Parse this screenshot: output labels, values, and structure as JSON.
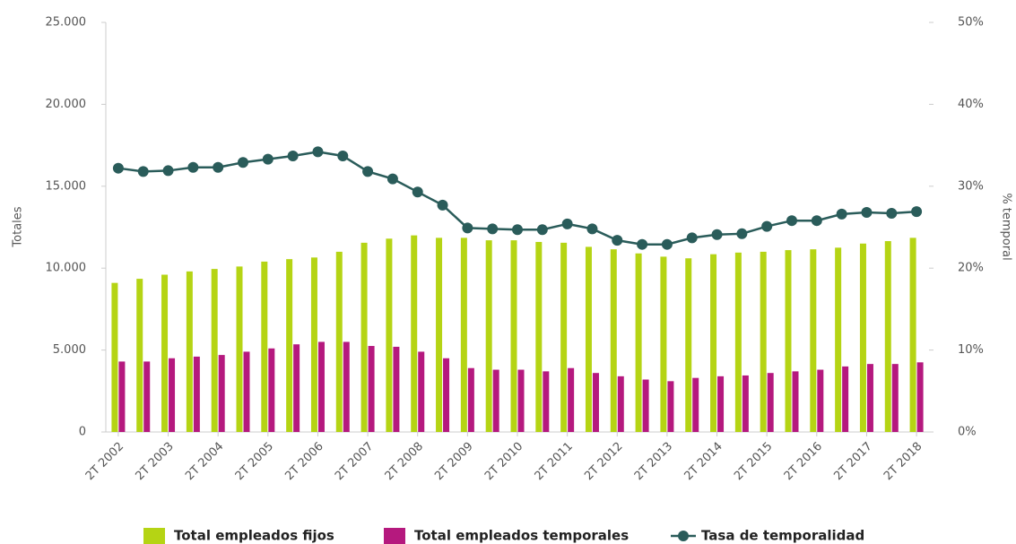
{
  "chart_data": {
    "type": "bar_line",
    "y_label": "Totales",
    "y2_label": "% temporal",
    "categories": [
      "2T 2002",
      null,
      "2T 2003",
      null,
      "2T 2004",
      null,
      "2T 2005",
      null,
      "2T 2006",
      null,
      "2T 2007",
      null,
      "2T 2008",
      null,
      "2T 2009",
      null,
      "2T 2010",
      null,
      "2T 2011",
      null,
      "2T 2012",
      null,
      "2T 2013",
      null,
      "2T 2014",
      null,
      "2T 2015",
      null,
      "2T 2016",
      null,
      "2T 2017",
      null,
      "2T 2018"
    ],
    "series": [
      {
        "name": "Total empleados fijos",
        "color": "#b5d414",
        "type": "bar",
        "values": [
          9100,
          9350,
          9600,
          9800,
          9950,
          10100,
          10400,
          10550,
          10650,
          11000,
          11550,
          11800,
          12000,
          11850,
          11850,
          11700,
          11700,
          11600,
          11550,
          11300,
          11150,
          10900,
          10700,
          10600,
          10850,
          10950,
          11000,
          11100,
          11150,
          11250,
          11500,
          11650,
          11850
        ]
      },
      {
        "name": "Total empleados temporales",
        "color": "#b5197e",
        "type": "bar",
        "values": [
          4300,
          4300,
          4500,
          4600,
          4700,
          4900,
          5100,
          5350,
          5500,
          5500,
          5250,
          5200,
          4900,
          4500,
          3900,
          3800,
          3800,
          3700,
          3900,
          3600,
          3400,
          3200,
          3100,
          3300,
          3400,
          3450,
          3600,
          3700,
          3800,
          4000,
          4150,
          4150,
          4250
        ]
      },
      {
        "name": "Tasa de temporalidad",
        "color": "#2a5c5a",
        "type": "line",
        "axis": "y2",
        "values": [
          32.2,
          31.8,
          31.9,
          32.3,
          32.3,
          32.9,
          33.3,
          33.7,
          34.2,
          33.7,
          31.8,
          30.9,
          29.3,
          27.7,
          24.9,
          24.8,
          24.7,
          24.7,
          25.4,
          24.8,
          23.4,
          22.9,
          22.9,
          23.7,
          24.1,
          24.2,
          25.1,
          25.8,
          25.8,
          26.6,
          26.8,
          26.7,
          26.9
        ]
      }
    ],
    "ylim": [
      0,
      25000
    ],
    "yticks": [
      0,
      {
        "value": 5000,
        "label": "5.000"
      },
      {
        "value": 10000,
        "label": "10.000"
      },
      {
        "value": 15000,
        "label": "15.000"
      },
      {
        "value": 20000,
        "label": "20.000"
      },
      {
        "value": 25000,
        "label": "25.000"
      }
    ],
    "y2lim": [
      0,
      50
    ],
    "y2ticks": [
      {
        "value": 0,
        "label": "0%"
      },
      {
        "value": 10,
        "label": "10%"
      },
      {
        "value": 20,
        "label": "20%"
      },
      {
        "value": 30,
        "label": "30%"
      },
      {
        "value": 40,
        "label": "40%"
      },
      {
        "value": 50,
        "label": "50%"
      }
    ],
    "grid": false,
    "legend": "bottom"
  }
}
